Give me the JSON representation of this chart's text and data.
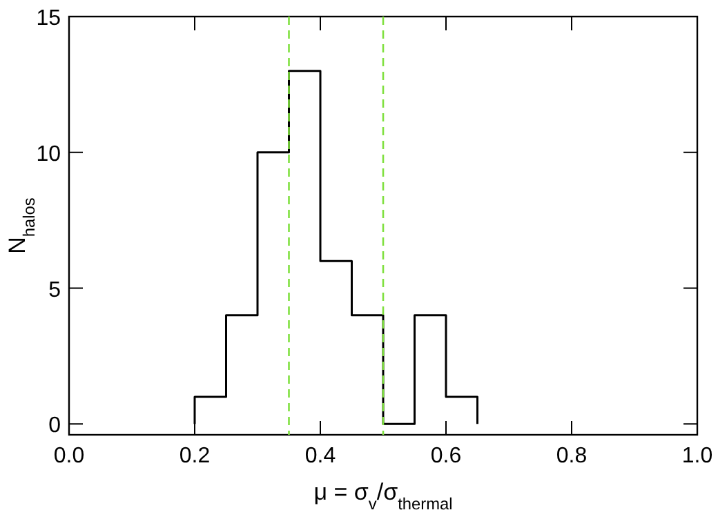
{
  "chart_data": {
    "type": "histogram",
    "xlabel": "μ = σ$_{v}$/σ$_{thermal}$",
    "ylabel": "N$_{halos}$",
    "bins": [
      0.2,
      0.25,
      0.3,
      0.35,
      0.4,
      0.45,
      0.5,
      0.55,
      0.6,
      0.65
    ],
    "values": [
      1,
      4,
      10,
      13,
      6,
      4,
      0,
      4,
      1
    ],
    "color": "#000000",
    "xlim": [
      0,
      1
    ],
    "xticks": [
      {
        "value": 0,
        "label": "0.0"
      },
      {
        "value": 0.2,
        "label": "0.2"
      },
      {
        "value": 0.4,
        "label": "0.4"
      },
      {
        "value": 0.6,
        "label": "0.6"
      },
      {
        "value": 0.8,
        "label": "0.8"
      },
      {
        "value": 1,
        "label": "1.0"
      }
    ],
    "ylim": [
      -0.4,
      15
    ],
    "yticks": [
      0,
      5,
      10,
      15
    ],
    "ref_lines": [
      {
        "axis": "x",
        "value": 0.35,
        "color": "#80e040",
        "line_style": "dashed"
      },
      {
        "axis": "x",
        "value": 0.5,
        "color": "#80e040",
        "line_style": "dashed"
      }
    ]
  }
}
